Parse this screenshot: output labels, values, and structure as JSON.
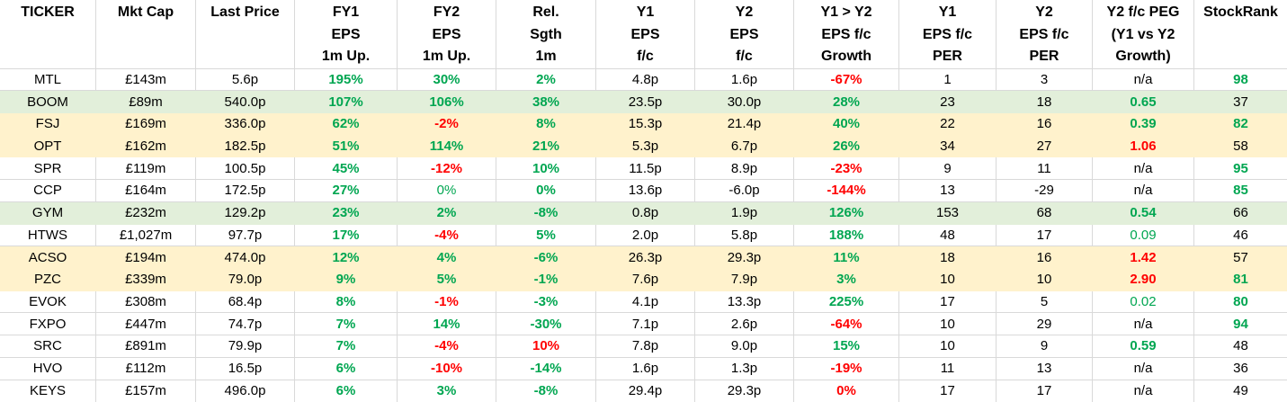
{
  "colors": {
    "positive_text": "#00a651",
    "negative_text": "#ff0000",
    "row_band_green": "#e2efda",
    "row_band_yellow": "#fff2cc",
    "gridline": "#d9d9d9",
    "header_text": "#000000"
  },
  "table": {
    "columns": [
      {
        "id": "ticker",
        "lines": [
          "TICKER"
        ]
      },
      {
        "id": "mkt-cap",
        "lines": [
          "Mkt Cap"
        ]
      },
      {
        "id": "last-price",
        "lines": [
          "Last Price"
        ]
      },
      {
        "id": "fy1-eps-1m-up",
        "lines": [
          "FY1",
          "EPS",
          "1m Up."
        ]
      },
      {
        "id": "fy2-eps-1m-up",
        "lines": [
          "FY2",
          "EPS",
          "1m Up."
        ]
      },
      {
        "id": "rel-sgth-1m",
        "lines": [
          "Rel.",
          "Sgth",
          "1m"
        ]
      },
      {
        "id": "y1-eps-fc",
        "lines": [
          "Y1",
          "EPS",
          "f/c"
        ]
      },
      {
        "id": "y2-eps-fc",
        "lines": [
          "Y2",
          "EPS",
          "f/c"
        ]
      },
      {
        "id": "y1-y2-eps-fc-growth",
        "lines": [
          "Y1 > Y2",
          "EPS f/c",
          "Growth"
        ]
      },
      {
        "id": "y1-eps-fc-per",
        "lines": [
          "Y1",
          "EPS f/c",
          "PER"
        ]
      },
      {
        "id": "y2-eps-fc-per",
        "lines": [
          "Y2",
          "EPS f/c",
          "PER"
        ]
      },
      {
        "id": "y2-fc-peg",
        "lines": [
          "Y2 f/c PEG",
          "(Y1 vs Y2",
          "Growth)"
        ]
      },
      {
        "id": "stockrank",
        "lines": [
          "StockRank"
        ]
      }
    ],
    "rows": [
      {
        "band": "",
        "cells": [
          [
            "MTL",
            "k"
          ],
          [
            "£143m",
            "k"
          ],
          [
            "5.6p",
            "k"
          ],
          [
            "195%",
            "gb"
          ],
          [
            "30%",
            "gb"
          ],
          [
            "2%",
            "gb"
          ],
          [
            "4.8p",
            "k"
          ],
          [
            "1.6p",
            "k"
          ],
          [
            "-67%",
            "rb"
          ],
          [
            "1",
            "k"
          ],
          [
            "3",
            "k"
          ],
          [
            "n/a",
            "k"
          ],
          [
            "98",
            "gb"
          ]
        ]
      },
      {
        "band": "green",
        "cells": [
          [
            "BOOM",
            "k"
          ],
          [
            "£89m",
            "k"
          ],
          [
            "540.0p",
            "k"
          ],
          [
            "107%",
            "gb"
          ],
          [
            "106%",
            "gb"
          ],
          [
            "38%",
            "gb"
          ],
          [
            "23.5p",
            "k"
          ],
          [
            "30.0p",
            "k"
          ],
          [
            "28%",
            "gb"
          ],
          [
            "23",
            "k"
          ],
          [
            "18",
            "k"
          ],
          [
            "0.65",
            "gb"
          ],
          [
            "37",
            "k"
          ]
        ]
      },
      {
        "band": "yellow",
        "cells": [
          [
            "FSJ",
            "k"
          ],
          [
            "£169m",
            "k"
          ],
          [
            "336.0p",
            "k"
          ],
          [
            "62%",
            "gb"
          ],
          [
            "-2%",
            "rb"
          ],
          [
            "8%",
            "gb"
          ],
          [
            "15.3p",
            "k"
          ],
          [
            "21.4p",
            "k"
          ],
          [
            "40%",
            "gb"
          ],
          [
            "22",
            "k"
          ],
          [
            "16",
            "k"
          ],
          [
            "0.39",
            "gb"
          ],
          [
            "82",
            "gb"
          ]
        ]
      },
      {
        "band": "yellow",
        "cells": [
          [
            "OPT",
            "k"
          ],
          [
            "£162m",
            "k"
          ],
          [
            "182.5p",
            "k"
          ],
          [
            "51%",
            "gb"
          ],
          [
            "114%",
            "gb"
          ],
          [
            "21%",
            "gb"
          ],
          [
            "5.3p",
            "k"
          ],
          [
            "6.7p",
            "k"
          ],
          [
            "26%",
            "gb"
          ],
          [
            "34",
            "k"
          ],
          [
            "27",
            "k"
          ],
          [
            "1.06",
            "rb"
          ],
          [
            "58",
            "k"
          ]
        ]
      },
      {
        "band": "",
        "cells": [
          [
            "SPR",
            "k"
          ],
          [
            "£119m",
            "k"
          ],
          [
            "100.5p",
            "k"
          ],
          [
            "45%",
            "gb"
          ],
          [
            "-12%",
            "rb"
          ],
          [
            "10%",
            "gb"
          ],
          [
            "11.5p",
            "k"
          ],
          [
            "8.9p",
            "k"
          ],
          [
            "-23%",
            "rb"
          ],
          [
            "9",
            "k"
          ],
          [
            "11",
            "k"
          ],
          [
            "n/a",
            "k"
          ],
          [
            "95",
            "gb"
          ]
        ]
      },
      {
        "band": "",
        "cells": [
          [
            "CCP",
            "k"
          ],
          [
            "£164m",
            "k"
          ],
          [
            "172.5p",
            "k"
          ],
          [
            "27%",
            "gb"
          ],
          [
            "0%",
            "g"
          ],
          [
            "0%",
            "gb"
          ],
          [
            "13.6p",
            "k"
          ],
          [
            "-6.0p",
            "k"
          ],
          [
            "-144%",
            "rb"
          ],
          [
            "13",
            "k"
          ],
          [
            "-29",
            "k"
          ],
          [
            "n/a",
            "k"
          ],
          [
            "85",
            "gb"
          ]
        ]
      },
      {
        "band": "green",
        "cells": [
          [
            "GYM",
            "k"
          ],
          [
            "£232m",
            "k"
          ],
          [
            "129.2p",
            "k"
          ],
          [
            "23%",
            "gb"
          ],
          [
            "2%",
            "gb"
          ],
          [
            "-8%",
            "gb"
          ],
          [
            "0.8p",
            "k"
          ],
          [
            "1.9p",
            "k"
          ],
          [
            "126%",
            "gb"
          ],
          [
            "153",
            "k"
          ],
          [
            "68",
            "k"
          ],
          [
            "0.54",
            "gb"
          ],
          [
            "66",
            "k"
          ]
        ]
      },
      {
        "band": "",
        "cells": [
          [
            "HTWS",
            "k"
          ],
          [
            "£1,027m",
            "k"
          ],
          [
            "97.7p",
            "k"
          ],
          [
            "17%",
            "gb"
          ],
          [
            "-4%",
            "rb"
          ],
          [
            "5%",
            "gb"
          ],
          [
            "2.0p",
            "k"
          ],
          [
            "5.8p",
            "k"
          ],
          [
            "188%",
            "gb"
          ],
          [
            "48",
            "k"
          ],
          [
            "17",
            "k"
          ],
          [
            "0.09",
            "g"
          ],
          [
            "46",
            "k"
          ]
        ]
      },
      {
        "band": "yellow",
        "cells": [
          [
            "ACSO",
            "k"
          ],
          [
            "£194m",
            "k"
          ],
          [
            "474.0p",
            "k"
          ],
          [
            "12%",
            "gb"
          ],
          [
            "4%",
            "gb"
          ],
          [
            "-6%",
            "gb"
          ],
          [
            "26.3p",
            "k"
          ],
          [
            "29.3p",
            "k"
          ],
          [
            "11%",
            "gb"
          ],
          [
            "18",
            "k"
          ],
          [
            "16",
            "k"
          ],
          [
            "1.42",
            "rb"
          ],
          [
            "57",
            "k"
          ]
        ]
      },
      {
        "band": "yellow",
        "cells": [
          [
            "PZC",
            "k"
          ],
          [
            "£339m",
            "k"
          ],
          [
            "79.0p",
            "k"
          ],
          [
            "9%",
            "gb"
          ],
          [
            "5%",
            "gb"
          ],
          [
            "-1%",
            "gb"
          ],
          [
            "7.6p",
            "k"
          ],
          [
            "7.9p",
            "k"
          ],
          [
            "3%",
            "gb"
          ],
          [
            "10",
            "k"
          ],
          [
            "10",
            "k"
          ],
          [
            "2.90",
            "rb"
          ],
          [
            "81",
            "gb"
          ]
        ]
      },
      {
        "band": "",
        "cells": [
          [
            "EVOK",
            "k"
          ],
          [
            "£308m",
            "k"
          ],
          [
            "68.4p",
            "k"
          ],
          [
            "8%",
            "gb"
          ],
          [
            "-1%",
            "rb"
          ],
          [
            "-3%",
            "gb"
          ],
          [
            "4.1p",
            "k"
          ],
          [
            "13.3p",
            "k"
          ],
          [
            "225%",
            "gb"
          ],
          [
            "17",
            "k"
          ],
          [
            "5",
            "k"
          ],
          [
            "0.02",
            "g"
          ],
          [
            "80",
            "gb"
          ]
        ]
      },
      {
        "band": "",
        "cells": [
          [
            "FXPO",
            "k"
          ],
          [
            "£447m",
            "k"
          ],
          [
            "74.7p",
            "k"
          ],
          [
            "7%",
            "gb"
          ],
          [
            "14%",
            "gb"
          ],
          [
            "-30%",
            "gb"
          ],
          [
            "7.1p",
            "k"
          ],
          [
            "2.6p",
            "k"
          ],
          [
            "-64%",
            "rb"
          ],
          [
            "10",
            "k"
          ],
          [
            "29",
            "k"
          ],
          [
            "n/a",
            "k"
          ],
          [
            "94",
            "gb"
          ]
        ]
      },
      {
        "band": "",
        "cells": [
          [
            "SRC",
            "k"
          ],
          [
            "£891m",
            "k"
          ],
          [
            "79.9p",
            "k"
          ],
          [
            "7%",
            "gb"
          ],
          [
            "-4%",
            "rb"
          ],
          [
            "10%",
            "rb"
          ],
          [
            "7.8p",
            "k"
          ],
          [
            "9.0p",
            "k"
          ],
          [
            "15%",
            "gb"
          ],
          [
            "10",
            "k"
          ],
          [
            "9",
            "k"
          ],
          [
            "0.59",
            "gb"
          ],
          [
            "48",
            "k"
          ]
        ]
      },
      {
        "band": "",
        "cells": [
          [
            "HVO",
            "k"
          ],
          [
            "£112m",
            "k"
          ],
          [
            "16.5p",
            "k"
          ],
          [
            "6%",
            "gb"
          ],
          [
            "-10%",
            "rb"
          ],
          [
            "-14%",
            "gb"
          ],
          [
            "1.6p",
            "k"
          ],
          [
            "1.3p",
            "k"
          ],
          [
            "-19%",
            "rb"
          ],
          [
            "11",
            "k"
          ],
          [
            "13",
            "k"
          ],
          [
            "n/a",
            "k"
          ],
          [
            "36",
            "k"
          ]
        ]
      },
      {
        "band": "",
        "cells": [
          [
            "KEYS",
            "k"
          ],
          [
            "£157m",
            "k"
          ],
          [
            "496.0p",
            "k"
          ],
          [
            "6%",
            "gb"
          ],
          [
            "3%",
            "gb"
          ],
          [
            "-8%",
            "gb"
          ],
          [
            "29.4p",
            "k"
          ],
          [
            "29.3p",
            "k"
          ],
          [
            "0%",
            "rb"
          ],
          [
            "17",
            "k"
          ],
          [
            "17",
            "k"
          ],
          [
            "n/a",
            "k"
          ],
          [
            "49",
            "k"
          ]
        ]
      }
    ]
  }
}
